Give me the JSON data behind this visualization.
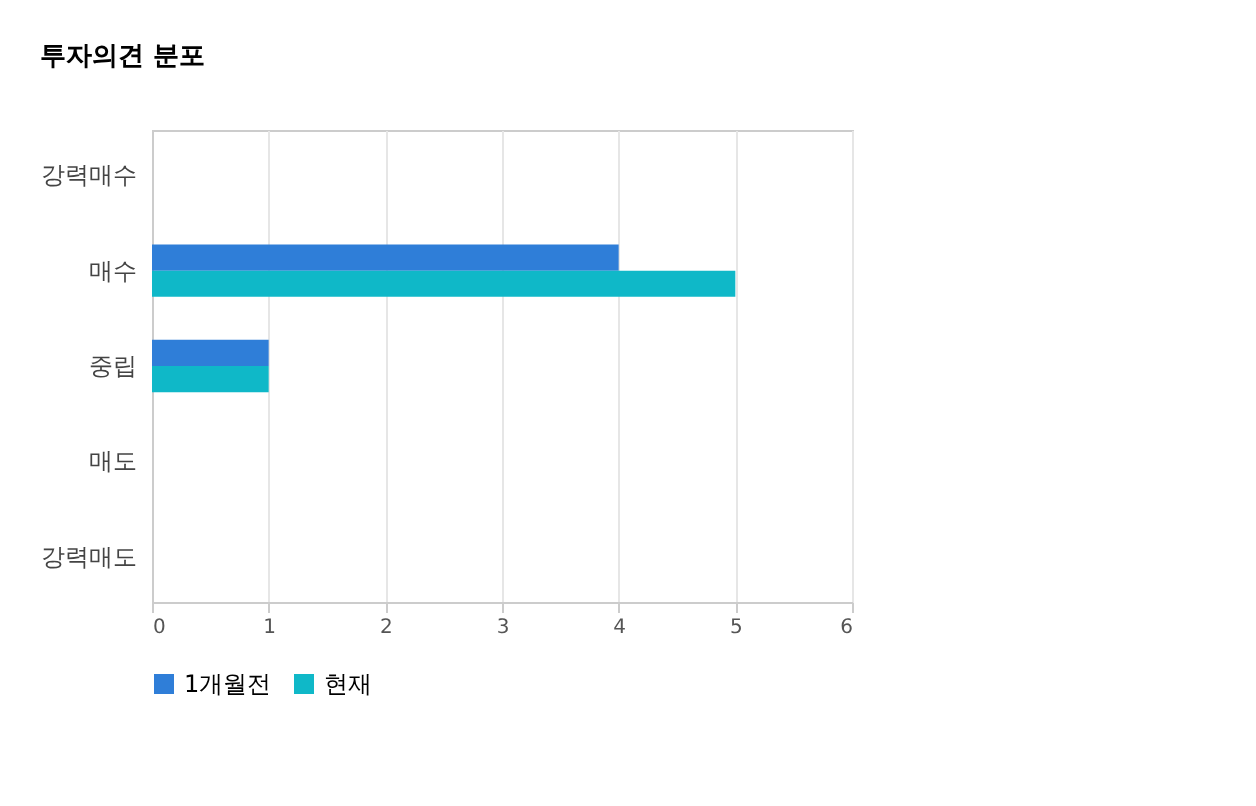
{
  "chart_data": {
    "type": "bar",
    "orientation": "horizontal",
    "title": "투자의견 분포",
    "categories": [
      "강력매수",
      "매수",
      "중립",
      "매도",
      "강력매도"
    ],
    "series": [
      {
        "name": "1개월전",
        "color": "#2f7ed8",
        "values": [
          0,
          4,
          1,
          0,
          0
        ]
      },
      {
        "name": "현재",
        "color": "#0fb8c8",
        "values": [
          0,
          5,
          1,
          0,
          0
        ]
      }
    ],
    "xlim": [
      0,
      6
    ],
    "xticks": [
      0,
      1,
      2,
      3,
      4,
      5,
      6
    ],
    "grid": "x",
    "legend": "bottom"
  }
}
